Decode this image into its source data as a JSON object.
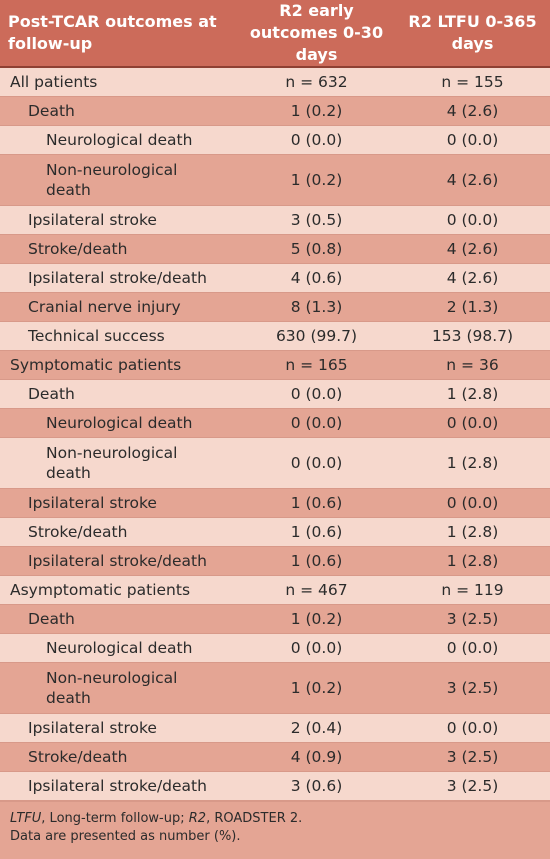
{
  "header": {
    "col1": "Post-TCAR outcomes at follow-up",
    "col2": "R2 early outcomes 0-30 days",
    "col3": "R2 LTFU 0-365 days"
  },
  "rows": [
    {
      "label": "All patients",
      "v1": "n = 632",
      "v2": "n = 155"
    },
    {
      "label": "Death",
      "v1": "1 (0.2)",
      "v2": "4 (2.6)"
    },
    {
      "label": "Neurological death",
      "v1": "0 (0.0)",
      "v2": "0 (0.0)"
    },
    {
      "label": "Non-neurological death",
      "v1": "1 (0.2)",
      "v2": "4 (2.6)"
    },
    {
      "label": "Ipsilateral stroke",
      "v1": "3 (0.5)",
      "v2": "0 (0.0)"
    },
    {
      "label": "Stroke/death",
      "v1": "5 (0.8)",
      "v2": "4 (2.6)"
    },
    {
      "label": "Ipsilateral stroke/death",
      "v1": "4 (0.6)",
      "v2": "4 (2.6)"
    },
    {
      "label": "Cranial nerve injury",
      "v1": "8 (1.3)",
      "v2": "2 (1.3)"
    },
    {
      "label": "Technical success",
      "v1": "630 (99.7)",
      "v2": "153 (98.7)"
    },
    {
      "label": "Symptomatic patients",
      "v1": "n = 165",
      "v2": "n = 36"
    },
    {
      "label": "Death",
      "v1": "0 (0.0)",
      "v2": "1 (2.8)"
    },
    {
      "label": "Neurological death",
      "v1": "0 (0.0)",
      "v2": "0 (0.0)"
    },
    {
      "label": "Non-neurological death",
      "v1": "0 (0.0)",
      "v2": "1 (2.8)"
    },
    {
      "label": "Ipsilateral stroke",
      "v1": "1 (0.6)",
      "v2": "0 (0.0)"
    },
    {
      "label": "Stroke/death",
      "v1": "1 (0.6)",
      "v2": "1 (2.8)"
    },
    {
      "label": "Ipsilateral stroke/death",
      "v1": "1 (0.6)",
      "v2": "1 (2.8)"
    },
    {
      "label": "Asymptomatic patients",
      "v1": "n = 467",
      "v2": "n = 119"
    },
    {
      "label": "Death",
      "v1": "1 (0.2)",
      "v2": "3 (2.5)"
    },
    {
      "label": "Neurological death",
      "v1": "0 (0.0)",
      "v2": "0 (0.0)"
    },
    {
      "label": "Non-neurological death",
      "v1": "1 (0.2)",
      "v2": "3 (2.5)"
    },
    {
      "label": "Ipsilateral stroke",
      "v1": "2 (0.4)",
      "v2": "0 (0.0)"
    },
    {
      "label": "Stroke/death",
      "v1": "4 (0.9)",
      "v2": "3 (2.5)"
    },
    {
      "label": "Ipsilateral stroke/death",
      "v1": "3 (0.6)",
      "v2": "3 (2.5)"
    }
  ],
  "footnote": {
    "abbr1": "LTFU",
    "def1": ", Long-term follow-up; ",
    "abbr2": "R2",
    "def2": ", ROADSTER 2.",
    "line2": "Data are presented as number (%)."
  }
}
